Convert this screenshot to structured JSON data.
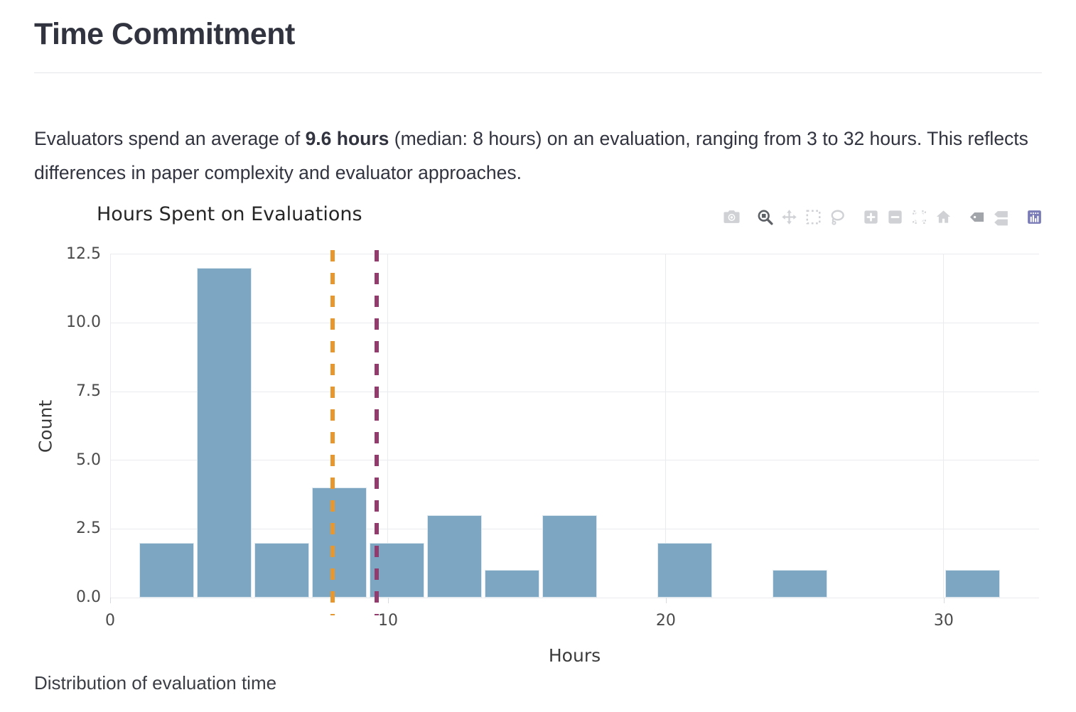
{
  "header": {
    "title": "Time Commitment"
  },
  "intro": {
    "before_bold": "Evaluators spend an average of ",
    "bold": "9.6 hours",
    "after_bold": " (median: 8 hours) on an evaluation, ranging from 3 to 32 hours. This reflects differences in paper complexity and evaluator approaches."
  },
  "caption": "Distribution of evaluation time",
  "chart_data": {
    "type": "bar",
    "subtype": "histogram",
    "title": "Hours Spent on Evaluations",
    "xlabel": "Hours",
    "ylabel": "Count",
    "x_tick_labels": [
      "0",
      "10",
      "20",
      "30"
    ],
    "x_tick_values": [
      0,
      10,
      20,
      30
    ],
    "y_tick_labels": [
      "0.0",
      "2.5",
      "5.0",
      "7.5",
      "10.0",
      "12.5"
    ],
    "y_tick_values": [
      0,
      2.5,
      5,
      7.5,
      10,
      12.5
    ],
    "x_range": [
      0,
      33.43
    ],
    "y_range": [
      0,
      12.65
    ],
    "grid": true,
    "bin_start": 1,
    "bin_size": 2.0714,
    "bin_counts": [
      2,
      12,
      2,
      4,
      2,
      3,
      1,
      3,
      0,
      2,
      0,
      1,
      0,
      0,
      1
    ],
    "bar_color": "#7da6c2",
    "reference_lines": [
      {
        "name": "median",
        "value": 8,
        "color": "#e8962e",
        "style": "dashed"
      },
      {
        "name": "mean",
        "value": 9.6,
        "color": "#953a6d",
        "style": "dashed"
      }
    ],
    "stats": {
      "mean_hours": 9.6,
      "median_hours": 8,
      "min_hours": 3,
      "max_hours": 32
    }
  },
  "modebar": {
    "icons": [
      "download-plot-camera",
      "zoom",
      "pan",
      "box-select",
      "lasso-select",
      "zoom-in",
      "zoom-out",
      "autoscale",
      "reset-axes-home",
      "hover-closest",
      "hover-compare",
      "plotly-logo"
    ],
    "groups": [
      [
        "download-plot-camera"
      ],
      [
        "zoom",
        "pan",
        "box-select",
        "lasso-select"
      ],
      [
        "zoom-in",
        "zoom-out",
        "autoscale",
        "reset-axes-home"
      ],
      [
        "hover-closest",
        "hover-compare"
      ],
      [
        "plotly-logo"
      ]
    ],
    "active": [
      "zoom"
    ],
    "semi_active": [
      "hover-closest"
    ],
    "icon_color": "#cfd1d5",
    "active_color": "#5d6065",
    "logo_color": "#7a7cb8"
  }
}
